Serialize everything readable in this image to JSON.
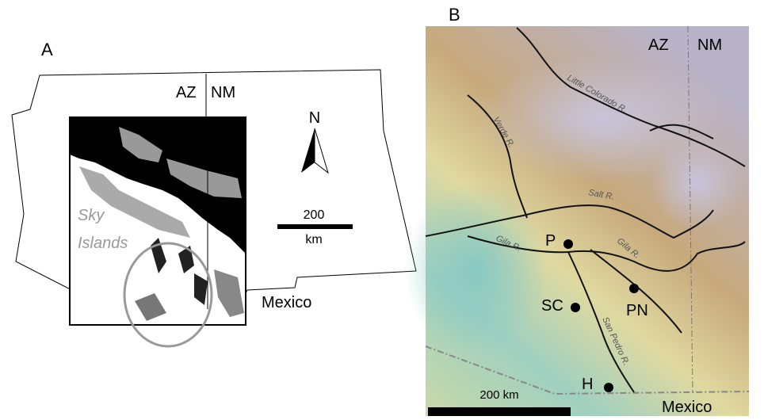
{
  "panel_a": {
    "label": "A",
    "states": [
      "AZ",
      "NM"
    ],
    "north": "N",
    "scale": {
      "value": "200",
      "unit": "km"
    },
    "region_label": [
      "Sky",
      "Islands"
    ],
    "country": "Mexico"
  },
  "panel_b": {
    "label": "B",
    "states": [
      "AZ",
      "NM"
    ],
    "rivers": [
      "Little Colorado R.",
      "Verde R.",
      "Salt R.",
      "Gila R.",
      "Gila R.",
      "San Pedro R."
    ],
    "sites": [
      "P",
      "SC",
      "PN",
      "H"
    ],
    "scale_label": "200 km",
    "country": "Mexico"
  }
}
